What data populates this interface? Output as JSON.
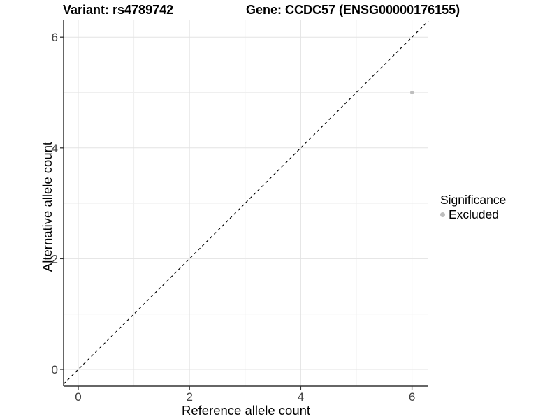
{
  "header": {
    "title_variant": "Variant: rs4789742",
    "title_gene": "Gene: CCDC57 (ENSG00000176155)"
  },
  "chart_data": {
    "type": "scatter",
    "title": "Variant: rs4789742 | Gene: CCDC57 (ENSG00000176155)",
    "xlabel": "Reference allele count",
    "ylabel": "Alternative allele count",
    "x_ticks": [
      0,
      2,
      4,
      6
    ],
    "y_ticks": [
      0,
      2,
      4,
      6
    ],
    "x_minor_ticks": [
      1,
      3,
      5
    ],
    "y_minor_ticks": [
      1,
      3,
      5
    ],
    "xlim": [
      -0.26,
      6.29
    ],
    "ylim": [
      -0.3,
      6.32
    ],
    "grid": true,
    "reference_line": {
      "kind": "identity",
      "equation": "y = x",
      "style": "dashed",
      "color": "#000000"
    },
    "series": [
      {
        "name": "Excluded",
        "color": "#bebebe",
        "points": [
          {
            "x": 6,
            "y": 5
          }
        ]
      }
    ],
    "legend": {
      "position": "right",
      "title": "Significance",
      "items": [
        {
          "label": "Excluded",
          "color": "#bebebe",
          "marker": "circle"
        }
      ]
    },
    "colors": {
      "background": "#ffffff",
      "grid_major": "#e3e3e3",
      "grid_minor": "#efefef",
      "axis_line": "#333333",
      "tick_label": "#404040",
      "point": "#bebebe"
    }
  }
}
